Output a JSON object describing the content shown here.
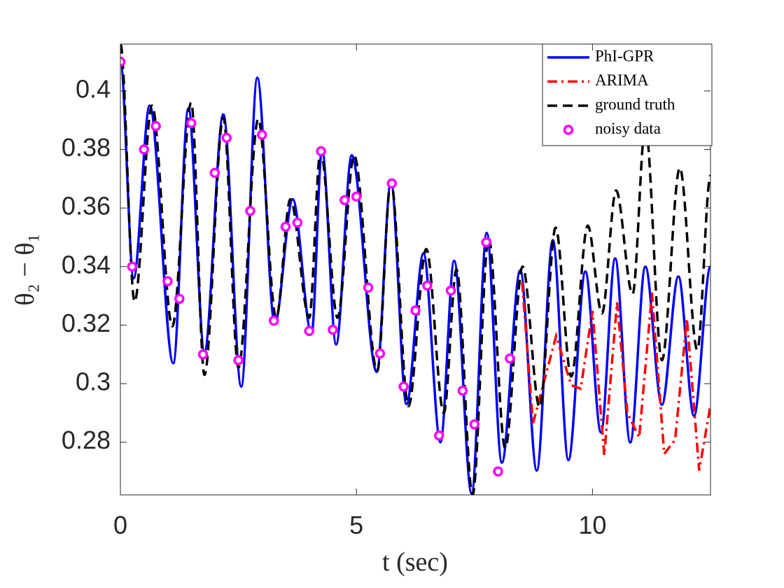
{
  "chart_data": {
    "type": "line",
    "xlabel": "t (sec)",
    "ylabel": "θ₂ − θ₁",
    "xlim": [
      0,
      12.5
    ],
    "ylim": [
      0.262,
      0.416
    ],
    "xticks": [
      0,
      5,
      10
    ],
    "yticks": [
      0.28,
      0.3,
      0.32,
      0.34,
      0.36,
      0.38,
      0.4
    ],
    "legend": "northeast",
    "series": [
      {
        "name": "PhI-GPR",
        "color": "#0000ff",
        "linestyle": "solid",
        "smooth": true,
        "x": [
          0,
          0.28,
          0.62,
          1.12,
          1.44,
          1.78,
          2.18,
          2.56,
          2.9,
          3.27,
          3.65,
          4.05,
          4.27,
          4.57,
          4.9,
          5.43,
          5.73,
          6.06,
          6.42,
          6.78,
          7.07,
          7.44,
          7.76,
          8.08,
          8.47,
          8.82,
          9.16,
          9.49,
          9.85,
          10.18,
          10.48,
          10.8,
          11.12,
          11.47,
          11.82,
          12.15,
          12.5
        ],
        "values": [
          0.41,
          0.336,
          0.395,
          0.307,
          0.394,
          0.311,
          0.392,
          0.299,
          0.4045,
          0.3205,
          0.363,
          0.317,
          0.38,
          0.3134,
          0.378,
          0.304,
          0.369,
          0.293,
          0.3445,
          0.28,
          0.342,
          0.2625,
          0.3515,
          0.273,
          0.3387,
          0.2703,
          0.349,
          0.2739,
          0.3383,
          0.2833,
          0.3428,
          0.2799,
          0.34,
          0.2928,
          0.3366,
          0.289,
          0.34
        ]
      },
      {
        "name": "ARIMA",
        "color": "#ff0000",
        "linestyle": "dashdot",
        "smooth": false,
        "x": [
          8.51,
          8.74,
          9.23,
          9.55,
          9.75,
          10.0,
          10.25,
          10.52,
          10.74,
          10.99,
          11.26,
          11.52,
          11.75,
          12.0,
          12.26,
          12.5
        ],
        "values": [
          0.3347,
          0.2864,
          0.3163,
          0.2995,
          0.2983,
          0.3249,
          0.2756,
          0.3278,
          0.29,
          0.2816,
          0.3311,
          0.276,
          0.2808,
          0.3222,
          0.2703,
          0.2928
        ]
      },
      {
        "name": "ground truth",
        "color": "#000000",
        "linestyle": "dashed",
        "smooth": true,
        "x": [
          0,
          0.3,
          0.67,
          1.1,
          1.5,
          1.78,
          2.18,
          2.5,
          2.92,
          3.3,
          3.6,
          4.0,
          4.24,
          4.6,
          4.95,
          5.44,
          5.73,
          6.1,
          6.48,
          6.85,
          7.12,
          7.46,
          7.8,
          8.15,
          8.52,
          8.88,
          9.22,
          9.55,
          9.9,
          10.2,
          10.5,
          10.85,
          11.12,
          11.47,
          11.85,
          12.22,
          12.5
        ],
        "values": [
          0.416,
          0.328,
          0.395,
          0.3196,
          0.396,
          0.303,
          0.391,
          0.3055,
          0.3904,
          0.3225,
          0.363,
          0.3225,
          0.3797,
          0.3225,
          0.378,
          0.3043,
          0.369,
          0.2923,
          0.346,
          0.29,
          0.339,
          0.262,
          0.3498,
          0.278,
          0.34,
          0.2919,
          0.3533,
          0.3024,
          0.354,
          0.324,
          0.366,
          0.3306,
          0.388,
          0.308,
          0.3737,
          0.3115,
          0.371
        ]
      },
      {
        "name": "noisy data",
        "color": "#ff00ff",
        "linestyle": "none",
        "marker": "circle",
        "x": [
          0,
          0.25,
          0.5,
          0.75,
          1,
          1.25,
          1.5,
          1.75,
          2,
          2.25,
          2.5,
          2.75,
          3,
          3.25,
          3.5,
          3.75,
          4,
          4.25,
          4.5,
          4.75,
          5,
          5.25,
          5.5,
          5.75,
          6,
          6.25,
          6.5,
          6.75,
          7,
          7.25,
          7.5,
          7.75,
          8,
          8.25
        ],
        "values": [
          0.41,
          0.34,
          0.38,
          0.388,
          0.335,
          0.329,
          0.389,
          0.31,
          0.372,
          0.384,
          0.308,
          0.359,
          0.385,
          0.3215,
          0.3536,
          0.355,
          0.318,
          0.3794,
          0.3184,
          0.3627,
          0.3639,
          0.3328,
          0.3103,
          0.3684,
          0.299,
          0.325,
          0.3335,
          0.2823,
          0.3318,
          0.2976,
          0.2861,
          0.3483,
          0.27,
          0.3086
        ]
      }
    ]
  }
}
